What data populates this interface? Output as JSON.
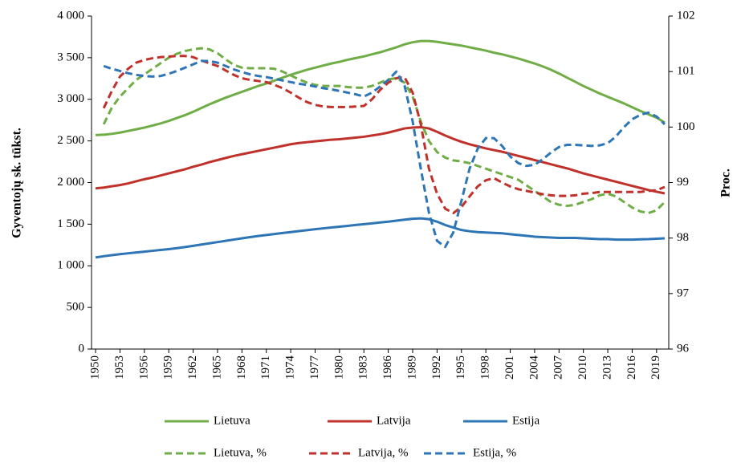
{
  "chart_data": {
    "type": "line",
    "ylabel": "Gyventojų sk. tūkst.",
    "y2label": "Proc.",
    "x": [
      1950,
      1951,
      1952,
      1953,
      1954,
      1955,
      1956,
      1957,
      1958,
      1959,
      1960,
      1961,
      1962,
      1963,
      1964,
      1965,
      1966,
      1967,
      1968,
      1969,
      1970,
      1971,
      1972,
      1973,
      1974,
      1975,
      1976,
      1977,
      1978,
      1979,
      1980,
      1981,
      1982,
      1983,
      1984,
      1985,
      1986,
      1987,
      1988,
      1989,
      1990,
      1991,
      1992,
      1993,
      1994,
      1995,
      1996,
      1997,
      1998,
      1999,
      2000,
      2001,
      2002,
      2003,
      2004,
      2005,
      2006,
      2007,
      2008,
      2009,
      2010,
      2011,
      2012,
      2013,
      2014,
      2015,
      2016,
      2017,
      2018,
      2019,
      2020
    ],
    "xlim": [
      1949.5,
      2020.5
    ],
    "xticks": [
      1950,
      1953,
      1956,
      1959,
      1962,
      1965,
      1968,
      1971,
      1974,
      1977,
      1980,
      1983,
      1986,
      1989,
      1992,
      1995,
      1998,
      2001,
      2004,
      2007,
      2010,
      2013,
      2016,
      2019
    ],
    "ylim": [
      0,
      4000
    ],
    "yticks": [
      0,
      500,
      {
        "value": 1000,
        "label": "1 000"
      },
      {
        "value": 1500,
        "label": "1 500"
      },
      {
        "value": 2000,
        "label": "2 000"
      },
      {
        "value": 2500,
        "label": "2 500"
      },
      {
        "value": 3000,
        "label": "3 000"
      },
      {
        "value": 3500,
        "label": "3 500"
      },
      {
        "value": 4000,
        "label": "4 000"
      }
    ],
    "y2lim": [
      96,
      102
    ],
    "y2ticks": [
      96,
      97,
      98,
      99,
      100,
      101,
      102
    ],
    "legend": "bottom",
    "series": [
      {
        "name": "Lietuva",
        "color": "#70ad47",
        "dash": false,
        "values": [
          2570,
          2575,
          2585,
          2600,
          2620,
          2640,
          2660,
          2685,
          2710,
          2740,
          2775,
          2810,
          2850,
          2895,
          2940,
          2980,
          3020,
          3055,
          3090,
          3125,
          3160,
          3190,
          3225,
          3260,
          3295,
          3325,
          3355,
          3380,
          3405,
          3430,
          3450,
          3475,
          3495,
          3515,
          3540,
          3565,
          3595,
          3625,
          3660,
          3685,
          3700,
          3700,
          3690,
          3675,
          3660,
          3645,
          3625,
          3605,
          3585,
          3560,
          3540,
          3515,
          3490,
          3460,
          3430,
          3395,
          3355,
          3310,
          3260,
          3210,
          3160,
          3115,
          3070,
          3030,
          2990,
          2950,
          2905,
          2860,
          2820,
          2780,
          2720
        ]
      },
      {
        "name": "Latvija",
        "color": "#c0312b",
        "dash": false,
        "values": [
          1930,
          1940,
          1955,
          1970,
          1990,
          2015,
          2040,
          2060,
          2085,
          2110,
          2135,
          2160,
          2190,
          2215,
          2245,
          2270,
          2295,
          2320,
          2340,
          2360,
          2380,
          2400,
          2420,
          2440,
          2460,
          2475,
          2485,
          2495,
          2505,
          2515,
          2520,
          2530,
          2540,
          2550,
          2565,
          2580,
          2600,
          2625,
          2650,
          2660,
          2665,
          2650,
          2610,
          2565,
          2525,
          2490,
          2460,
          2435,
          2410,
          2390,
          2370,
          2345,
          2320,
          2295,
          2270,
          2245,
          2220,
          2195,
          2170,
          2140,
          2110,
          2085,
          2060,
          2035,
          2010,
          1985,
          1960,
          1935,
          1910,
          1890,
          1870
        ]
      },
      {
        "name": "Estija",
        "color": "#2e75b6",
        "dash": false,
        "values": [
          1100,
          1115,
          1128,
          1140,
          1150,
          1160,
          1170,
          1180,
          1190,
          1200,
          1212,
          1225,
          1240,
          1255,
          1270,
          1285,
          1300,
          1315,
          1330,
          1345,
          1358,
          1370,
          1382,
          1394,
          1405,
          1417,
          1428,
          1440,
          1450,
          1460,
          1470,
          1480,
          1490,
          1500,
          1510,
          1520,
          1530,
          1542,
          1554,
          1565,
          1570,
          1560,
          1530,
          1490,
          1460,
          1430,
          1415,
          1405,
          1400,
          1395,
          1390,
          1380,
          1370,
          1360,
          1350,
          1345,
          1340,
          1335,
          1335,
          1335,
          1330,
          1325,
          1320,
          1320,
          1315,
          1315,
          1315,
          1318,
          1320,
          1325,
          1330
        ]
      },
      {
        "name": "Lietuva, %",
        "color": "#70ad47",
        "dash": true,
        "axis": "y2",
        "values": [
          null,
          100.05,
          100.35,
          100.55,
          100.7,
          100.85,
          100.95,
          101.05,
          101.15,
          101.25,
          101.32,
          101.37,
          101.4,
          101.42,
          101.4,
          101.33,
          101.22,
          101.12,
          101.07,
          101.06,
          101.06,
          101.06,
          101.05,
          101.0,
          100.93,
          100.86,
          100.8,
          100.76,
          100.74,
          100.74,
          100.74,
          100.72,
          100.71,
          100.71,
          100.74,
          100.8,
          100.86,
          100.88,
          100.8,
          100.55,
          100.1,
          99.75,
          99.55,
          99.45,
          99.4,
          99.38,
          99.35,
          99.3,
          99.25,
          99.2,
          99.15,
          99.1,
          99.05,
          98.95,
          98.85,
          98.75,
          98.65,
          98.6,
          98.58,
          98.6,
          98.65,
          98.7,
          98.77,
          98.8,
          98.75,
          98.65,
          98.55,
          98.48,
          98.45,
          98.5,
          98.65
        ]
      },
      {
        "name": "Latvija, %",
        "color": "#c0312b",
        "dash": true,
        "axis": "y2",
        "values": [
          null,
          100.34,
          100.65,
          100.91,
          101.05,
          101.16,
          101.21,
          101.24,
          101.26,
          101.27,
          101.28,
          101.28,
          101.26,
          101.2,
          101.15,
          101.1,
          101.02,
          100.94,
          100.88,
          100.85,
          100.83,
          100.81,
          100.76,
          100.7,
          100.62,
          100.53,
          100.45,
          100.4,
          100.37,
          100.36,
          100.36,
          100.36,
          100.37,
          100.38,
          100.5,
          100.67,
          100.8,
          100.88,
          100.9,
          100.62,
          100.05,
          99.25,
          98.8,
          98.53,
          98.45,
          98.56,
          98.75,
          98.93,
          99.04,
          99.08,
          99.0,
          98.93,
          98.88,
          98.85,
          98.82,
          98.79,
          98.77,
          98.76,
          98.76,
          98.77,
          98.8,
          98.81,
          98.83,
          98.83,
          98.83,
          98.83,
          98.83,
          98.83,
          98.85,
          98.86,
          98.92
        ]
      },
      {
        "name": "Estija, %",
        "color": "#2e75b6",
        "dash": true,
        "axis": "y2",
        "values": [
          null,
          101.1,
          101.05,
          101.01,
          100.97,
          100.94,
          100.92,
          100.91,
          100.92,
          100.96,
          101.01,
          101.07,
          101.13,
          101.19,
          101.19,
          101.16,
          101.1,
          101.04,
          100.99,
          100.95,
          100.92,
          100.9,
          100.87,
          100.84,
          100.81,
          100.78,
          100.76,
          100.73,
          100.7,
          100.68,
          100.65,
          100.62,
          100.59,
          100.55,
          100.62,
          100.73,
          100.85,
          101.0,
          100.75,
          100.1,
          99.25,
          98.46,
          97.95,
          97.84,
          98.1,
          98.67,
          99.25,
          99.61,
          99.8,
          99.8,
          99.66,
          99.47,
          99.35,
          99.3,
          99.32,
          99.42,
          99.54,
          99.64,
          99.68,
          99.68,
          99.67,
          99.66,
          99.67,
          99.71,
          99.83,
          100.0,
          100.14,
          100.22,
          100.26,
          100.19,
          100.05
        ]
      }
    ]
  }
}
